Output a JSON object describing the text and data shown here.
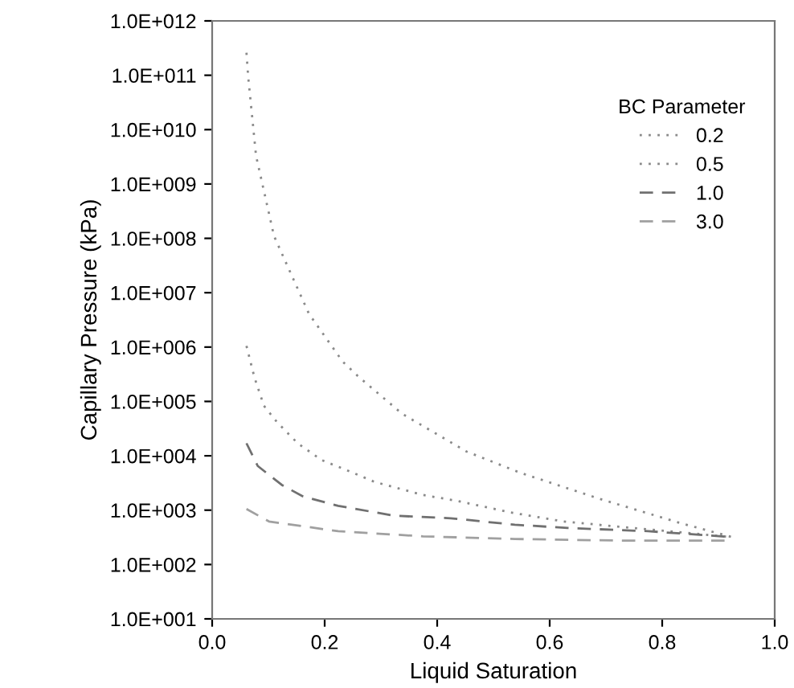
{
  "chart_data": {
    "type": "line",
    "xlabel": "Liquid Saturation",
    "ylabel": "Capillary Pressure (kPa)",
    "legend_title": "BC Parameter",
    "xlim": [
      0,
      1
    ],
    "xticks": [
      {
        "value": 0,
        "label": "0.0"
      },
      0.2,
      0.4,
      0.6,
      0.8,
      {
        "value": 1,
        "label": "1.0"
      }
    ],
    "ylim": [
      10,
      1000000000000.0
    ],
    "log": "y",
    "yticks": [
      {
        "value": 10,
        "label": "1.0E+001"
      },
      {
        "value": 100,
        "label": "1.0E+002"
      },
      {
        "value": 1000,
        "label": "1.0E+003"
      },
      {
        "value": 10000,
        "label": "1.0E+004"
      },
      {
        "value": 100000,
        "label": "1.0E+005"
      },
      {
        "value": 1000000,
        "label": "1.0E+006"
      },
      {
        "value": 10000000,
        "label": "1.0E+007"
      },
      {
        "value": 100000000,
        "label": "1.0E+008"
      },
      {
        "value": 1000000000,
        "label": "1.0E+009"
      },
      {
        "value": 10000000000,
        "label": "1.0E+010"
      },
      {
        "value": 100000000000,
        "label": "1.0E+011"
      },
      {
        "value": 1000000000000,
        "label": "1.0E+012"
      }
    ],
    "grid": false,
    "legend": "top right",
    "marker": "none",
    "series": [
      {
        "name": "0.2",
        "color": "#8a8a8a",
        "line_style": "dotted",
        "x": [
          0.061,
          0.064,
          0.078,
          0.11,
          0.172,
          0.232,
          0.261,
          0.338,
          0.452,
          0.547,
          0.69,
          0.832,
          0.924
        ],
        "values": [
          260000000000.0,
          95000000000.0,
          3300000000.0,
          110000000.0,
          4100000.0,
          540000.0,
          280000.0,
          59000.0,
          12000.0,
          4900.0,
          1600.0,
          580.0,
          320.0
        ]
      },
      {
        "name": "0.5",
        "color": "#8a8a8a",
        "line_style": "dotted",
        "x": [
          0.061,
          0.075,
          0.092,
          0.115,
          0.152,
          0.195,
          0.244,
          0.289,
          0.375,
          0.433,
          0.53,
          0.624,
          0.767,
          0.924
        ],
        "values": [
          1050000.0,
          280000.0,
          83000.0,
          42000.0,
          17000.0,
          8300.0,
          5200.0,
          3300.0,
          1900.0,
          1500.0,
          910.0,
          620.0,
          450.0,
          320.0
        ]
      },
      {
        "name": "1.0",
        "color": "#707070",
        "line_style": "dashed",
        "x": [
          0.061,
          0.081,
          0.124,
          0.161,
          0.224,
          0.324,
          0.424,
          0.538,
          0.632,
          0.775,
          0.924
        ],
        "values": [
          17000.0,
          6500.0,
          2900.0,
          1800.0,
          1200.0,
          790.0,
          710.0,
          540.0,
          470.0,
          410.0,
          320.0
        ]
      },
      {
        "name": "3.0",
        "color": "#a0a0a0",
        "line_style": "dashed",
        "x": [
          0.061,
          0.101,
          0.224,
          0.375,
          0.538,
          0.73,
          0.924
        ],
        "values": [
          1050.0,
          620.0,
          410.0,
          330.0,
          295.0,
          275.0,
          275.0
        ]
      }
    ]
  }
}
